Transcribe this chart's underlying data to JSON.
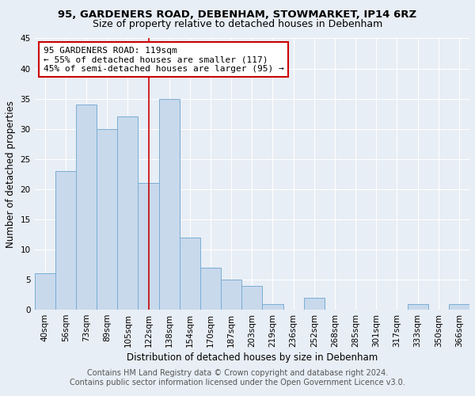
{
  "title": "95, GARDENERS ROAD, DEBENHAM, STOWMARKET, IP14 6RZ",
  "subtitle": "Size of property relative to detached houses in Debenham",
  "xlabel": "Distribution of detached houses by size in Debenham",
  "ylabel": "Number of detached properties",
  "categories": [
    "40sqm",
    "56sqm",
    "73sqm",
    "89sqm",
    "105sqm",
    "122sqm",
    "138sqm",
    "154sqm",
    "170sqm",
    "187sqm",
    "203sqm",
    "219sqm",
    "236sqm",
    "252sqm",
    "268sqm",
    "285sqm",
    "301sqm",
    "317sqm",
    "333sqm",
    "350sqm",
    "366sqm"
  ],
  "values": [
    6,
    23,
    34,
    30,
    32,
    21,
    35,
    12,
    7,
    5,
    4,
    1,
    0,
    2,
    0,
    0,
    0,
    0,
    1,
    0,
    1
  ],
  "bar_color": "#c8d9ec",
  "bar_edge_color": "#7aadd4",
  "vline_x_index": 5,
  "vline_color": "#cc0000",
  "annotation_text": "95 GARDENERS ROAD: 119sqm\n← 55% of detached houses are smaller (117)\n45% of semi-detached houses are larger (95) →",
  "annotation_box_color": "#ffffff",
  "annotation_box_edge": "#cc0000",
  "ylim": [
    0,
    45
  ],
  "yticks": [
    0,
    5,
    10,
    15,
    20,
    25,
    30,
    35,
    40,
    45
  ],
  "footer_line1": "Contains HM Land Registry data © Crown copyright and database right 2024.",
  "footer_line2": "Contains public sector information licensed under the Open Government Licence v3.0.",
  "bg_color": "#e8eef5",
  "grid_color": "#ffffff",
  "title_fontsize": 9.5,
  "subtitle_fontsize": 9,
  "axis_label_fontsize": 8.5,
  "tick_fontsize": 7.5,
  "annotation_fontsize": 8,
  "footer_fontsize": 7
}
